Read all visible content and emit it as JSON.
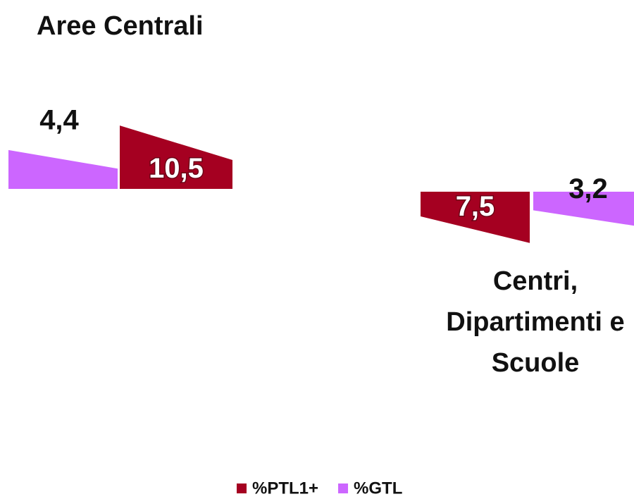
{
  "chart_data": {
    "type": "wedge",
    "categories": [
      "Aree Centrali",
      "Centri, Dipartimenti e Scuole"
    ],
    "series": [
      {
        "name": "%PTL1+",
        "color": "#a50021",
        "values": [
          10.5,
          7.5
        ],
        "value_labels": [
          "10,5",
          "7,5"
        ]
      },
      {
        "name": "%GTL",
        "color": "#cc66ff",
        "values": [
          4.4,
          3.2
        ],
        "value_labels": [
          "4,4",
          "3,2"
        ]
      }
    ],
    "legend": "bottom"
  }
}
